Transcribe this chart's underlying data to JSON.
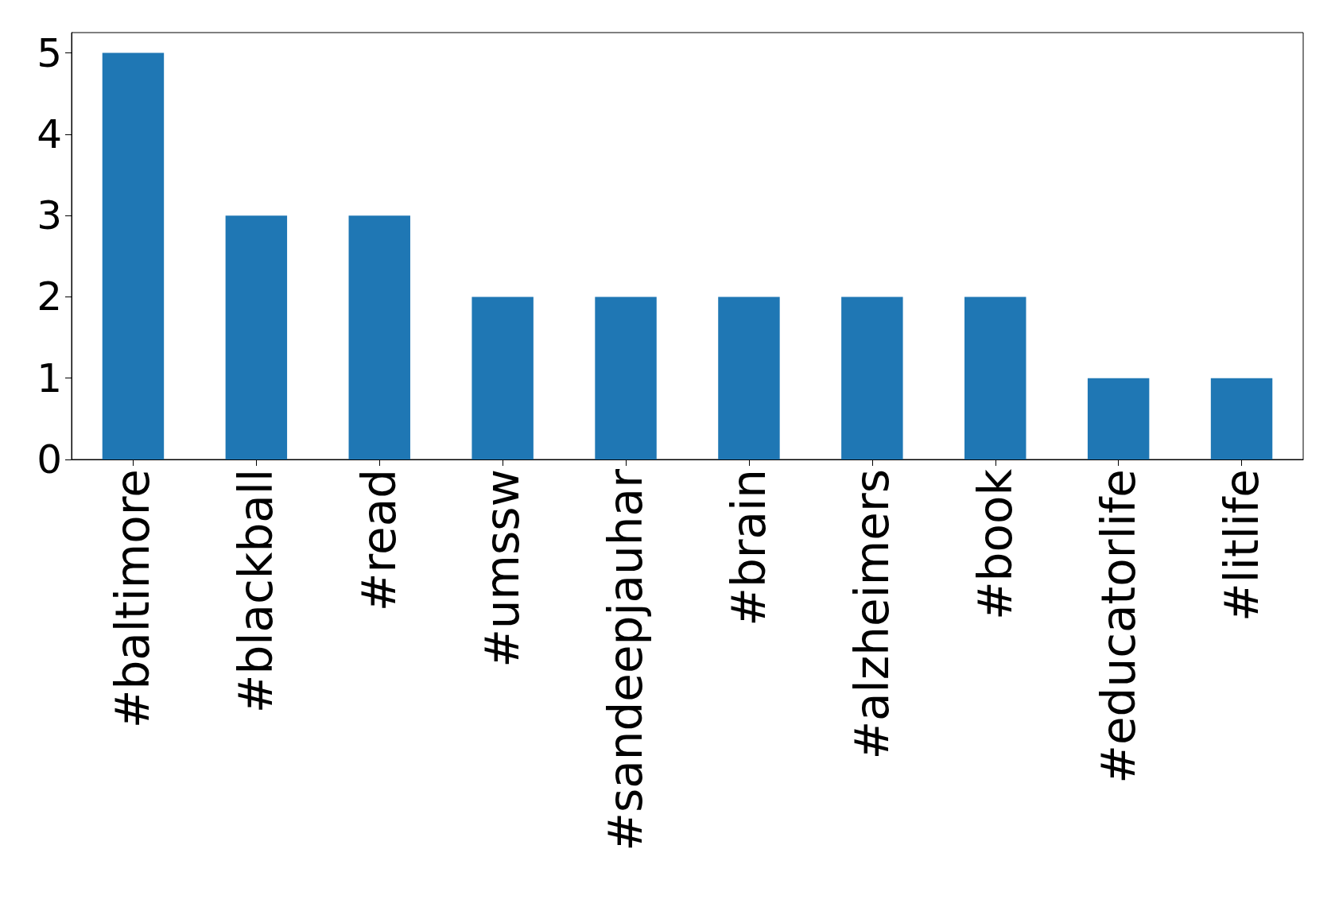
{
  "chart_data": {
    "type": "bar",
    "categories": [
      "#baltimore",
      "#blackball",
      "#read",
      "#umssw",
      "#sandeepjauhar",
      "#brain",
      "#alzheimers",
      "#book",
      "#educatorlife",
      "#litlife"
    ],
    "values": [
      5,
      3,
      3,
      2,
      2,
      2,
      2,
      2,
      1,
      1
    ],
    "color": "#1f77b4",
    "ylim": [
      0,
      5.25
    ],
    "yticks": [
      0,
      1,
      2,
      3,
      4,
      5
    ],
    "grid": false
  }
}
